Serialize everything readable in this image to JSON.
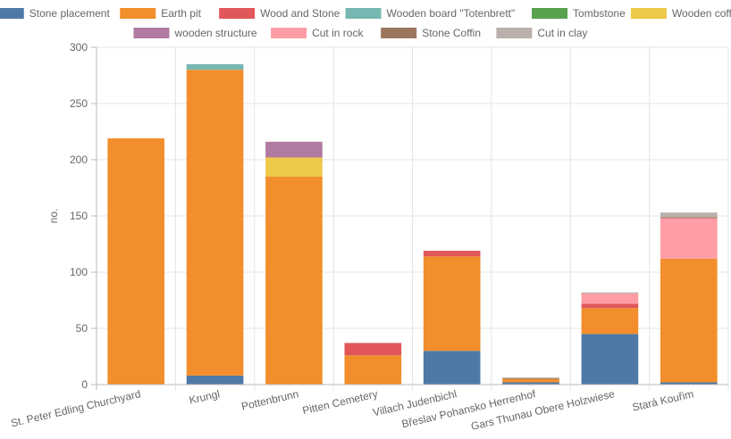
{
  "chart_data": {
    "type": "bar",
    "stacked": true,
    "title": "",
    "xlabel": "",
    "ylabel": "no.",
    "ylim": [
      0,
      300
    ],
    "yticks": [
      0,
      50,
      100,
      150,
      200,
      250,
      300
    ],
    "grid": true,
    "legend_position": "top",
    "categories": [
      "St. Peter Edling Churchyard",
      "Krungl",
      "Pottenbrunn",
      "Pitten Cemetery",
      "Villach Judenbichl",
      "Břeslav Pohansko Herrenhof",
      "Gars Thunau Obere Holzwiese",
      "Stará Kouřim"
    ],
    "series": [
      {
        "name": "Stone placement",
        "color": "#4e79a7",
        "values": [
          0,
          8,
          0,
          0,
          30,
          2,
          45,
          2
        ]
      },
      {
        "name": "Earth pit",
        "color": "#f28e2b",
        "values": [
          219,
          272,
          185,
          26,
          84,
          3,
          23,
          110
        ]
      },
      {
        "name": "Wood and Stone",
        "color": "#e15759",
        "values": [
          0,
          0,
          0,
          11,
          5,
          0,
          4,
          0
        ]
      },
      {
        "name": "Wooden board \"Totenbrett\"",
        "color": "#76b7b2",
        "values": [
          0,
          5,
          0,
          0,
          0,
          0,
          0,
          0
        ]
      },
      {
        "name": "Tombstone",
        "color": "#59a14f",
        "values": [
          0,
          0,
          0,
          0,
          0,
          0,
          0,
          0
        ]
      },
      {
        "name": "Wooden coffin",
        "color": "#edc948",
        "values": [
          0,
          0,
          17,
          0,
          0,
          0,
          0,
          0
        ]
      },
      {
        "name": "wooden structure",
        "color": "#b07aa1",
        "values": [
          0,
          0,
          14,
          0,
          0,
          0,
          0,
          0
        ]
      },
      {
        "name": "Cut in rock",
        "color": "#ff9da7",
        "values": [
          0,
          0,
          0,
          0,
          0,
          0,
          9,
          36
        ]
      },
      {
        "name": "Stone Coffin",
        "color": "#9c755f",
        "values": [
          0,
          0,
          0,
          0,
          0,
          1,
          0,
          1
        ]
      },
      {
        "name": "Cut in clay",
        "color": "#bab0ac",
        "values": [
          0,
          0,
          0,
          0,
          0,
          0,
          1,
          4
        ]
      }
    ]
  }
}
